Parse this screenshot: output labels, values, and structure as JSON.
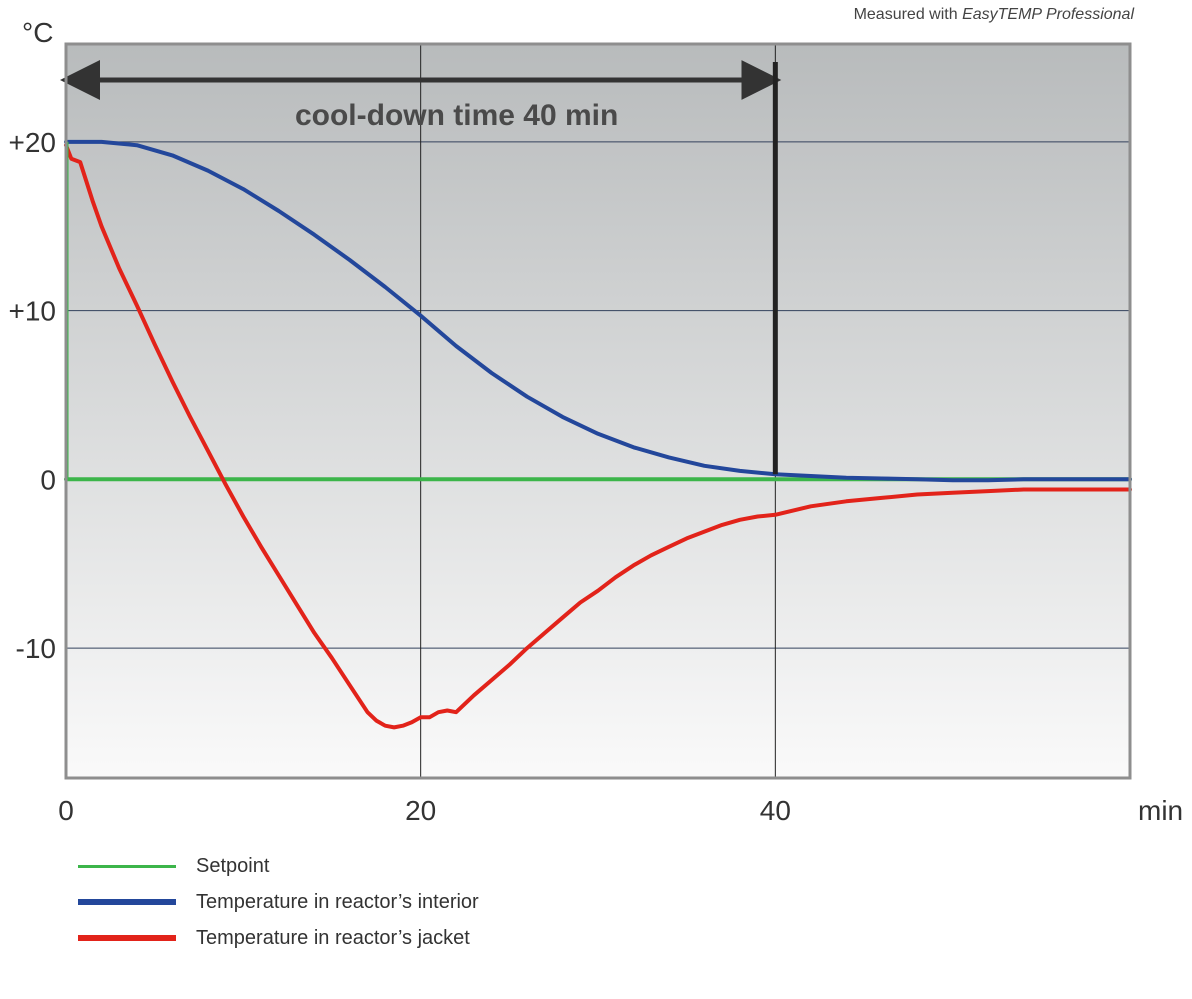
{
  "source_note": {
    "prefix": "Measured with ",
    "product": "EasyTEMP Professional"
  },
  "chart_data": {
    "type": "line",
    "ylabel": "°C",
    "xlabel": "min",
    "xlim": [
      0,
      60
    ],
    "ylim": [
      -17.7,
      25.8
    ],
    "x_ticks": [
      0,
      20,
      40
    ],
    "x_tick_labels": [
      "0",
      "20",
      "40"
    ],
    "y_ticks": [
      20,
      10,
      0,
      -10
    ],
    "y_tick_labels": [
      "+20",
      "+10",
      "0",
      "-10"
    ],
    "grid": true,
    "annotation": {
      "text": "cool-down time 40 min",
      "from_x": 0,
      "to_x": 40
    },
    "series": [
      {
        "name": "Setpoint",
        "color": "#3cb54a",
        "x": [
          0,
          60
        ],
        "y": [
          0,
          0
        ]
      },
      {
        "name": "Temperature in reactor’s interior",
        "color": "#23479b",
        "x": [
          0,
          2,
          4,
          6,
          8,
          10,
          12,
          14,
          16,
          18,
          20,
          22,
          24,
          26,
          28,
          30,
          32,
          34,
          36,
          38,
          40,
          42,
          44,
          46,
          48,
          50,
          52,
          54,
          56,
          58,
          60
        ],
        "y": [
          20,
          20,
          19.8,
          19.2,
          18.3,
          17.2,
          15.9,
          14.5,
          13,
          11.4,
          9.7,
          7.9,
          6.3,
          4.9,
          3.7,
          2.7,
          1.9,
          1.3,
          0.8,
          0.5,
          0.3,
          0.2,
          0.1,
          0.05,
          0,
          -0.05,
          -0.05,
          0,
          0,
          0,
          0
        ]
      },
      {
        "name": "Temperature in reactor’s jacket",
        "color": "#e2231a",
        "x": [
          0,
          0.3,
          0.8,
          1.5,
          2,
          3,
          4,
          5,
          6,
          7,
          8,
          9,
          10,
          11,
          12,
          13,
          14,
          15,
          16,
          17,
          17.5,
          18,
          18.5,
          19,
          19.5,
          20,
          20.5,
          21,
          21.5,
          22,
          23,
          24,
          25,
          26,
          27,
          28,
          29,
          30,
          31,
          32,
          33,
          34,
          35,
          36,
          37,
          38,
          39,
          40,
          42,
          44,
          46,
          48,
          50,
          52,
          54,
          56,
          58,
          60
        ],
        "y": [
          19.8,
          19,
          18.8,
          16.5,
          15,
          12.5,
          10.3,
          8,
          5.8,
          3.7,
          1.7,
          -0.3,
          -2.2,
          -4,
          -5.7,
          -7.4,
          -9.1,
          -10.6,
          -12.2,
          -13.8,
          -14.3,
          -14.6,
          -14.7,
          -14.6,
          -14.4,
          -14.1,
          -14.1,
          -13.8,
          -13.7,
          -13.8,
          -12.8,
          -11.9,
          -11,
          -10,
          -9.1,
          -8.2,
          -7.3,
          -6.6,
          -5.8,
          -5.1,
          -4.5,
          -4,
          -3.5,
          -3.1,
          -2.7,
          -2.4,
          -2.2,
          -2.1,
          -1.6,
          -1.3,
          -1.1,
          -0.9,
          -0.8,
          -0.7,
          -0.6,
          -0.6,
          -0.6,
          -0.6
        ]
      }
    ]
  }
}
